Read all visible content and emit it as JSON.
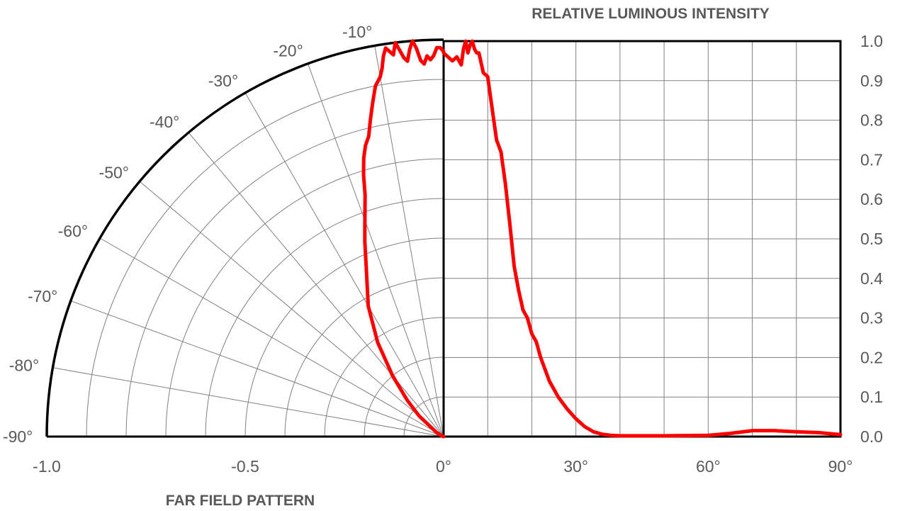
{
  "colors": {
    "curve": "#ff0000",
    "grid": "#808080",
    "frame": "#000000",
    "text": "#595959"
  },
  "chart_data": [
    {
      "type": "polar",
      "title": "FAR FIELD PATTERN",
      "angle_range": [
        -90,
        0
      ],
      "radius_range": [
        0,
        1.0
      ],
      "angle_tick_labels": [
        "-90°",
        "-80°",
        "-70°",
        "-60°",
        "-50°",
        "-40°",
        "-30°",
        "-20°",
        "-10°"
      ],
      "radius_tick_labels": [
        "-1.0",
        "-0.5",
        "0°"
      ],
      "series": [
        {
          "angles": [
            -90,
            -70,
            -60,
            -50,
            -45,
            -40,
            -35,
            -30,
            -25,
            -22,
            -20,
            -18,
            -17,
            -16,
            -15,
            -14,
            -13,
            -12,
            -11,
            -10,
            -9.5,
            -9,
            -8.5,
            -8,
            -7.5,
            -7,
            -6.5,
            -6,
            -5.5,
            -5,
            -4.5,
            -4,
            -3.5,
            -3,
            -2.5,
            -2,
            -1.5,
            -1,
            -0.5,
            0
          ],
          "values": [
            0.0,
            0.005,
            0.02,
            0.08,
            0.13,
            0.2,
            0.29,
            0.38,
            0.46,
            0.53,
            0.58,
            0.64,
            0.69,
            0.73,
            0.76,
            0.78,
            0.82,
            0.86,
            0.9,
            0.92,
            0.94,
            0.97,
            0.99,
            0.98,
            0.97,
            1.0,
            0.98,
            0.96,
            0.95,
            0.98,
            1.0,
            0.98,
            0.95,
            0.94,
            0.96,
            0.95,
            0.96,
            0.98,
            0.98,
            0.97
          ]
        }
      ]
    },
    {
      "type": "line",
      "title": "RELATIVE LUMINOUS INTENSITY",
      "xlabel": "",
      "ylabel": "",
      "xlim": [
        0,
        90
      ],
      "ylim": [
        0,
        1.0
      ],
      "x_tick_labels": [
        "30°",
        "60°",
        "90°"
      ],
      "y_tick_labels": [
        "0.0",
        "0.1",
        "0.2",
        "0.3",
        "0.4",
        "0.5",
        "0.6",
        "0.7",
        "0.8",
        "0.9",
        "1.0"
      ],
      "grid": true,
      "series": [
        {
          "x": [
            0,
            1,
            2,
            3,
            4,
            4.5,
            5,
            5.5,
            6,
            6.5,
            7,
            7.5,
            8,
            9,
            10,
            11,
            12,
            13,
            14,
            15,
            16,
            17,
            18,
            19,
            20,
            21,
            22,
            23,
            24,
            26,
            28,
            30,
            32,
            34,
            36,
            38,
            40,
            50,
            60,
            65,
            70,
            75,
            80,
            85,
            90
          ],
          "y": [
            0.97,
            0.96,
            0.95,
            0.96,
            0.94,
            0.98,
            1.0,
            0.97,
            0.99,
            1.0,
            0.98,
            0.97,
            0.97,
            0.92,
            0.91,
            0.83,
            0.75,
            0.72,
            0.64,
            0.54,
            0.43,
            0.37,
            0.32,
            0.3,
            0.26,
            0.24,
            0.2,
            0.17,
            0.14,
            0.1,
            0.07,
            0.045,
            0.025,
            0.012,
            0.006,
            0.003,
            0.002,
            0.002,
            0.003,
            0.008,
            0.015,
            0.015,
            0.012,
            0.01,
            0.005
          ]
        }
      ]
    }
  ]
}
